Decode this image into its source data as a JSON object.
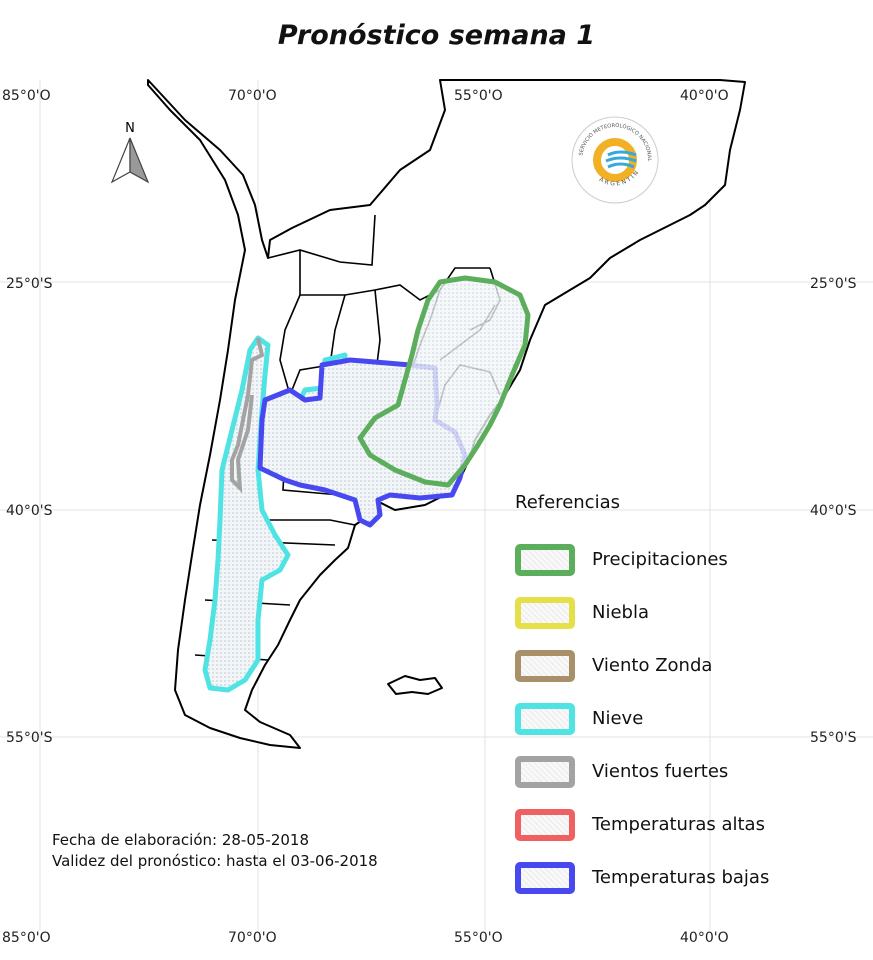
{
  "title": "Pronóstico semana 1",
  "longitude_labels_top": [
    "85°0'O",
    "70°0'O",
    "55°0'O",
    "40°0'O"
  ],
  "longitude_labels_bottom": [
    "85°0'O",
    "70°0'O",
    "55°0'O",
    "40°0'O"
  ],
  "latitude_labels_left": [
    "25°0'S",
    "40°0'S",
    "55°0'S"
  ],
  "latitude_labels_right": [
    "25°0'S",
    "40°0'S",
    "55°0'S"
  ],
  "north_arrow_label": "N",
  "legend": {
    "title": "Referencias",
    "items": [
      {
        "label": "Precipitaciones",
        "color": "#5cad5c"
      },
      {
        "label": "Niebla",
        "color": "#e5e04a"
      },
      {
        "label": "Viento Zonda",
        "color": "#a8906a"
      },
      {
        "label": "Nieve",
        "color": "#4fe3e3"
      },
      {
        "label": "Vientos fuertes",
        "color": "#a3a3a3"
      },
      {
        "label": "Temperaturas altas",
        "color": "#f06060"
      },
      {
        "label": "Temperaturas bajas",
        "color": "#4848f0"
      }
    ]
  },
  "footer": {
    "fecha": "Fecha de elaboración: 28-05-2018",
    "validez": "Validez del pronóstico: hasta el 03-06-2018"
  },
  "logo": {
    "text_top": "SERVICIO METEOROLÓGICO NACIONAL",
    "text_bottom": "ARGENTINA"
  }
}
